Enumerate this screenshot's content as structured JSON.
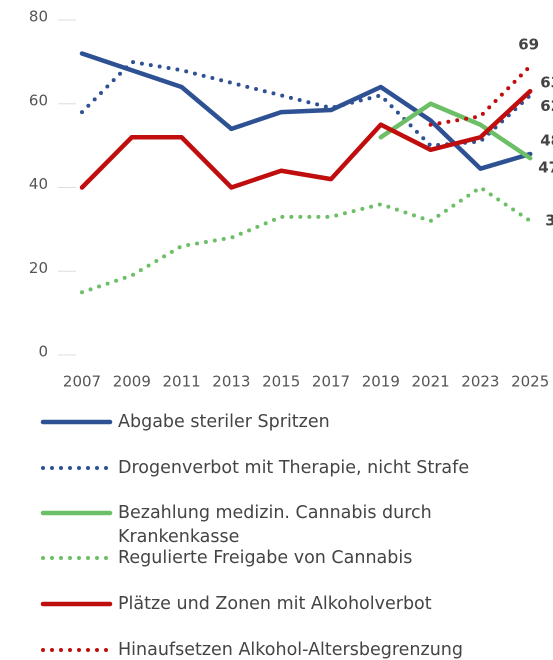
{
  "chart_data": {
    "type": "line",
    "categories": [
      "2007",
      "2009",
      "2011",
      "2013",
      "2015",
      "2017",
      "2019",
      "2021",
      "2023",
      "2025"
    ],
    "series": [
      {
        "name": "Abgabe steriler Spritzen",
        "color": "#2e5193",
        "line_style": "solid",
        "values": [
          72,
          68,
          64,
          54,
          58,
          58.5,
          64,
          56,
          44.5,
          48
        ]
      },
      {
        "name": "Drogenverbot mit Therapie, nicht Strafe",
        "color": "#2e5193",
        "line_style": "dotted",
        "values": [
          58,
          70,
          68,
          65,
          62,
          59,
          62,
          50,
          51,
          62
        ]
      },
      {
        "name": "Bezahlung medizin. Cannabis durch Krankenkasse",
        "color": "#6dbf67",
        "line_style": "solid",
        "values": [
          null,
          null,
          null,
          null,
          null,
          null,
          52,
          60,
          55,
          47
        ]
      },
      {
        "name": "Regulierte Freigabe von Cannabis",
        "color": "#6dbf67",
        "line_style": "dotted",
        "values": [
          15,
          19,
          26,
          28,
          33,
          33,
          36,
          32,
          40,
          32
        ]
      },
      {
        "name": "Plätze und Zonen mit Alkoholverbot",
        "color": "#c00d0d",
        "line_style": "solid",
        "values": [
          40,
          52,
          52,
          40,
          44,
          42,
          55,
          49,
          52,
          63
        ]
      },
      {
        "name": "Hinaufsetzen Alkohol-Altersbegrenzung",
        "color": "#c00d0d",
        "line_style": "dotted",
        "values": [
          null,
          null,
          null,
          null,
          null,
          null,
          null,
          55,
          57,
          69
        ]
      }
    ],
    "ylim": [
      0,
      80
    ],
    "yticks": [
      0,
      20,
      40,
      60,
      80
    ],
    "end_labels": true
  }
}
